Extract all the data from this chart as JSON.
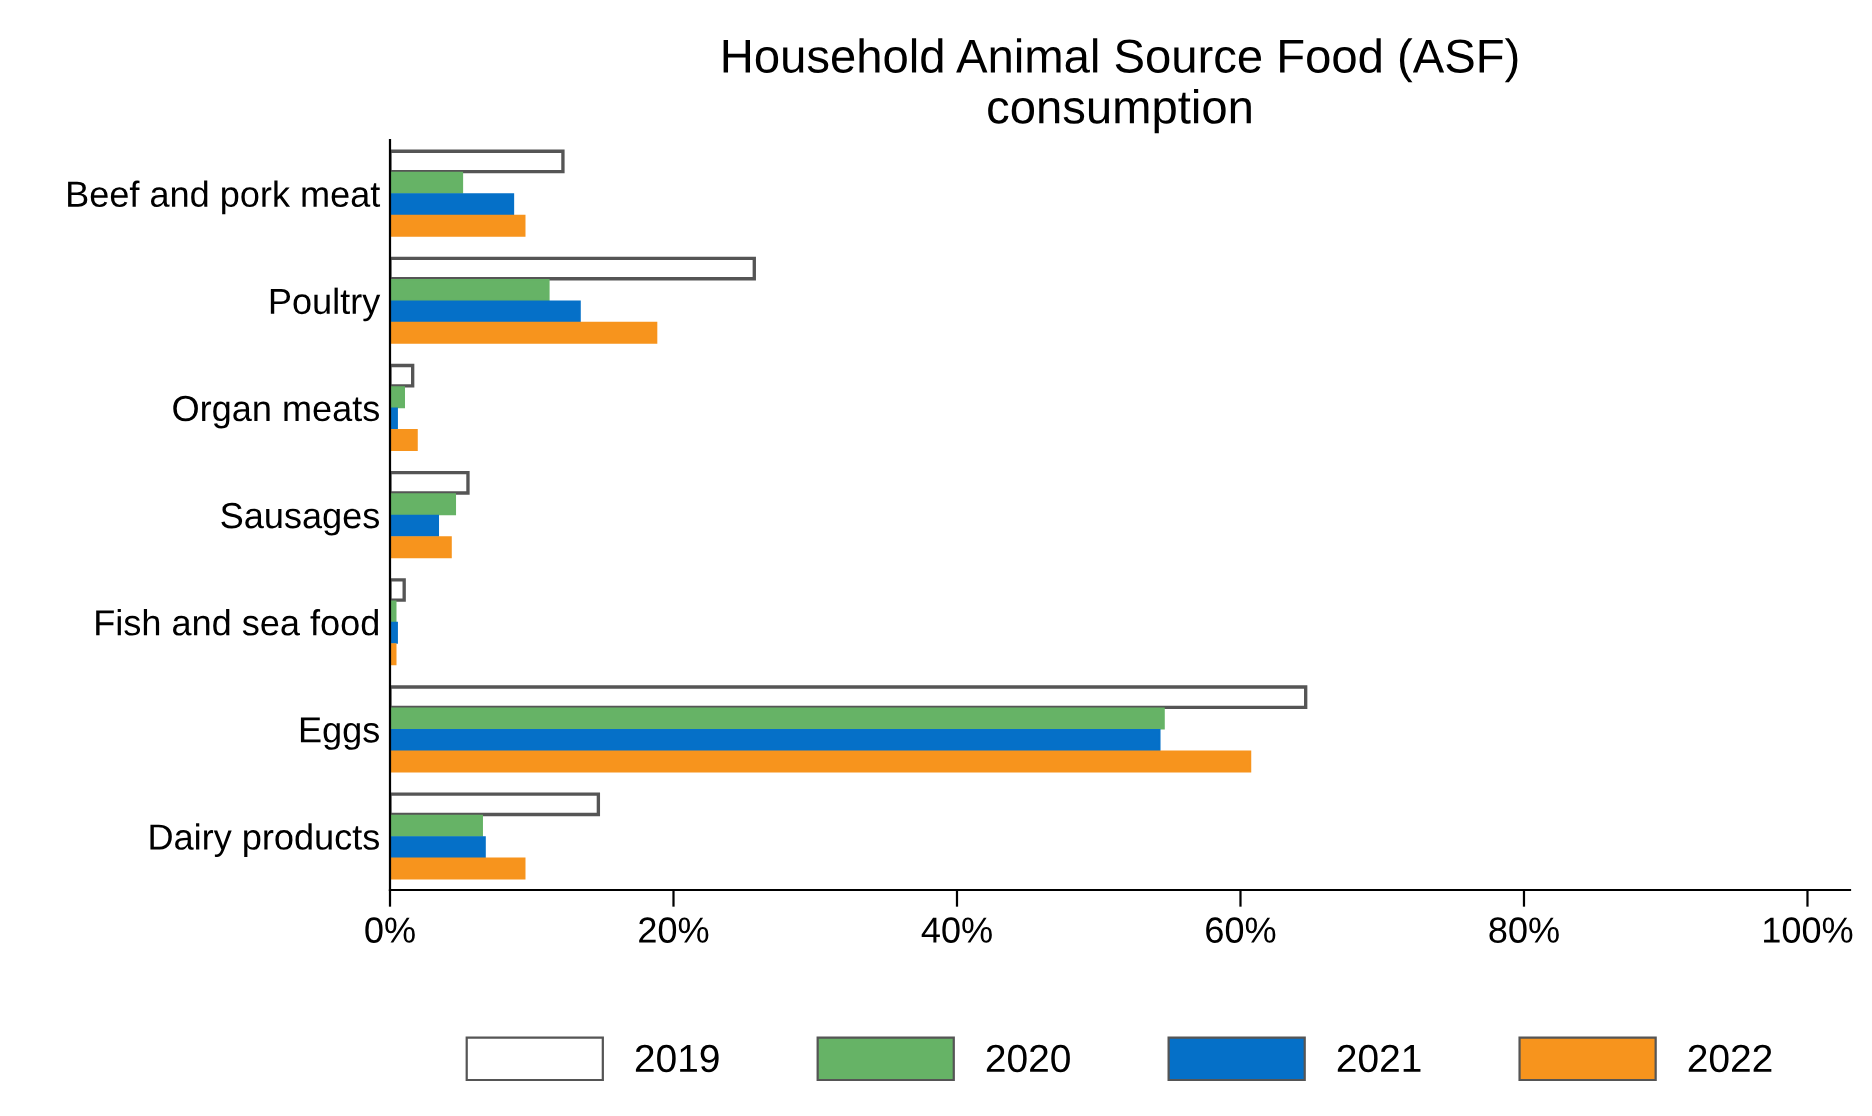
{
  "chart_data": {
    "type": "bar",
    "orientation": "horizontal",
    "title": "Household Animal Source Food (ASF)\nconsumption",
    "categories": [
      "Beef and pork meat",
      "Poultry",
      "Organ meats",
      "Sausages",
      "Fish and sea food",
      "Eggs",
      "Dairy products"
    ],
    "series": [
      {
        "name": "2019",
        "color": "#ffffff",
        "values": [
          12.2,
          25.7,
          1.6,
          5.5,
          1.0,
          64.6,
          14.7
        ]
      },
      {
        "name": "2020",
        "color": "#66b366",
        "values": [
          5.1,
          11.2,
          1.0,
          4.6,
          0.4,
          54.6,
          6.5
        ]
      },
      {
        "name": "2021",
        "color": "#0570c8",
        "values": [
          8.7,
          13.4,
          0.5,
          3.4,
          0.5,
          54.3,
          6.7
        ]
      },
      {
        "name": "2022",
        "color": "#f7941d",
        "values": [
          9.5,
          18.8,
          1.9,
          4.3,
          0.4,
          60.7,
          9.5
        ]
      }
    ],
    "xlim": [
      0,
      103
    ],
    "xticks": [
      {
        "value": 0,
        "label": "0%"
      },
      {
        "value": 20,
        "label": "20%"
      },
      {
        "value": 40,
        "label": "40%"
      },
      {
        "value": 60,
        "label": "60%"
      },
      {
        "value": 80,
        "label": "80%"
      },
      {
        "value": 100,
        "label": "100%"
      }
    ],
    "grid": false,
    "legend": "bottom"
  }
}
